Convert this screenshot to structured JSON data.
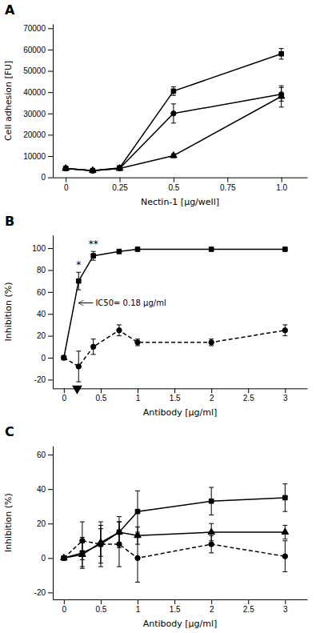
{
  "chart_data": [
    {
      "type": "line",
      "title": "A",
      "xlabel": "Nectin-1 [μg/well]",
      "ylabel": "Cell adhesion [FU]",
      "xlim": [
        -0.06,
        1.12
      ],
      "ylim": [
        0,
        72000
      ],
      "xticks": [
        0,
        0.25,
        0.5,
        0.75,
        {
          "value": 1.0,
          "label": "1.0"
        }
      ],
      "yticks": [
        0,
        10000,
        20000,
        30000,
        40000,
        50000,
        60000,
        70000
      ],
      "x": [
        0,
        0.125,
        0.25,
        0.5,
        1.0
      ],
      "series": [
        {
          "color": "black",
          "marker": "square",
          "line_style": "solid",
          "values": [
            4200,
            3200,
            4500,
            40500,
            58000
          ],
          "errors": [
            400,
            400,
            700,
            2000,
            2500
          ]
        },
        {
          "color": "black",
          "marker": "circle",
          "line_style": "solid",
          "values": [
            4200,
            3200,
            4200,
            30000,
            39000
          ],
          "errors": [
            400,
            400,
            700,
            4500,
            3200
          ]
        },
        {
          "color": "black",
          "marker": "triangle",
          "line_style": "solid",
          "values": [
            4200,
            3200,
            4200,
            10200,
            38000
          ],
          "errors": [
            400,
            400,
            700,
            900,
            5000
          ]
        }
      ]
    },
    {
      "type": "line",
      "title": "B",
      "xlabel": "Antibody [μg/ml]",
      "ylabel": "Inhibition (%)",
      "xlim": [
        -0.15,
        3.3
      ],
      "ylim": [
        -28,
        112
      ],
      "xticks": [
        0,
        0.5,
        1,
        1.5,
        2,
        2.5,
        3
      ],
      "yticks": [
        -20,
        0,
        20,
        40,
        60,
        80,
        100
      ],
      "x": [
        0,
        0.2,
        0.4,
        0.75,
        1.0,
        2.0,
        3.0
      ],
      "annotations": [
        {
          "text": "IC50= 0.18 μg/ml",
          "x": 0.18,
          "y": 50
        }
      ],
      "series": [
        {
          "color": "black",
          "marker": "square",
          "line_style": "solid",
          "values": [
            0,
            70,
            93,
            97,
            99,
            99,
            99
          ],
          "errors": [
            1,
            8,
            4,
            2,
            1,
            1,
            1
          ],
          "stars": [
            null,
            "*",
            "**",
            null,
            null,
            null,
            null
          ]
        },
        {
          "color": "black",
          "marker": "circle",
          "line_style": "dashed",
          "values": [
            0,
            -8,
            10,
            25,
            14,
            14,
            25
          ],
          "errors": [
            1,
            14,
            7,
            5,
            3,
            3,
            5
          ]
        }
      ]
    },
    {
      "type": "line",
      "title": "C",
      "xlabel": "Antibody [μg/ml]",
      "ylabel": "Inhibition (%)",
      "xlim": [
        -0.15,
        3.3
      ],
      "ylim": [
        -24,
        65
      ],
      "xticks": [
        0,
        0.5,
        1,
        1.5,
        2,
        2.5,
        3
      ],
      "yticks": [
        -20,
        0,
        20,
        40,
        60
      ],
      "x": [
        0,
        0.25,
        0.5,
        0.75,
        1.0,
        2.0,
        3.0
      ],
      "series": [
        {
          "color": "black",
          "marker": "square",
          "line_style": "solid",
          "values": [
            0,
            3,
            8,
            15,
            27,
            33,
            35
          ],
          "errors": [
            1,
            9,
            11,
            9,
            12,
            8,
            8
          ]
        },
        {
          "color": "black",
          "marker": "triangle",
          "line_style": "solid",
          "values": [
            0,
            2,
            9,
            15,
            13,
            15,
            15
          ],
          "errors": [
            1,
            7,
            8,
            6,
            5,
            5,
            4
          ]
        },
        {
          "color": "black",
          "marker": "circle",
          "line_style": "dashed",
          "values": [
            0,
            10,
            8,
            8,
            0,
            8,
            1
          ],
          "errors": [
            1,
            11,
            13,
            13,
            14,
            5,
            9
          ]
        }
      ]
    }
  ]
}
